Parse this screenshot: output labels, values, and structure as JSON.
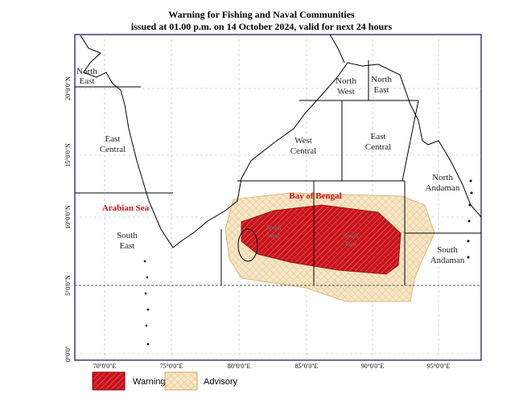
{
  "header": {
    "title": "Warning for Fishing and Naval Communities",
    "subtitle": "issued at 01.00 p.m. on 14 October 2024, valid for next 24 hours"
  },
  "map": {
    "regions": [
      {
        "lines": [
          "North",
          "East"
        ]
      },
      {
        "lines": [
          "East",
          "Central"
        ]
      },
      {
        "lines": [
          "Arabian Sea"
        ]
      },
      {
        "lines": [
          "South",
          "East"
        ]
      },
      {
        "lines": [
          "North",
          "West"
        ]
      },
      {
        "lines": [
          "North",
          "East"
        ]
      },
      {
        "lines": [
          "West",
          "Central"
        ]
      },
      {
        "lines": [
          "East",
          "Central"
        ]
      },
      {
        "lines": [
          "Bay of Bengal"
        ]
      },
      {
        "lines": [
          "North",
          "Andaman"
        ]
      },
      {
        "lines": [
          "South",
          "Andaman"
        ]
      },
      {
        "lines": [
          "South",
          "West"
        ]
      },
      {
        "lines": [
          "South",
          "East"
        ]
      }
    ],
    "lon_labels": [
      "70°0'0\"E",
      "75°0'0\"E",
      "80°0'0\"E",
      "85°0'0\"E",
      "90°0'0\"E",
      "95°0'0\"E"
    ],
    "lat_labels": [
      "20°0'0\"N",
      "15°0'0\"N",
      "10°0'0\"N",
      "5°0'0\"N",
      "0°0'0\""
    ]
  },
  "legend": [
    {
      "label": "Warning"
    },
    {
      "label": "Advisory"
    }
  ]
}
